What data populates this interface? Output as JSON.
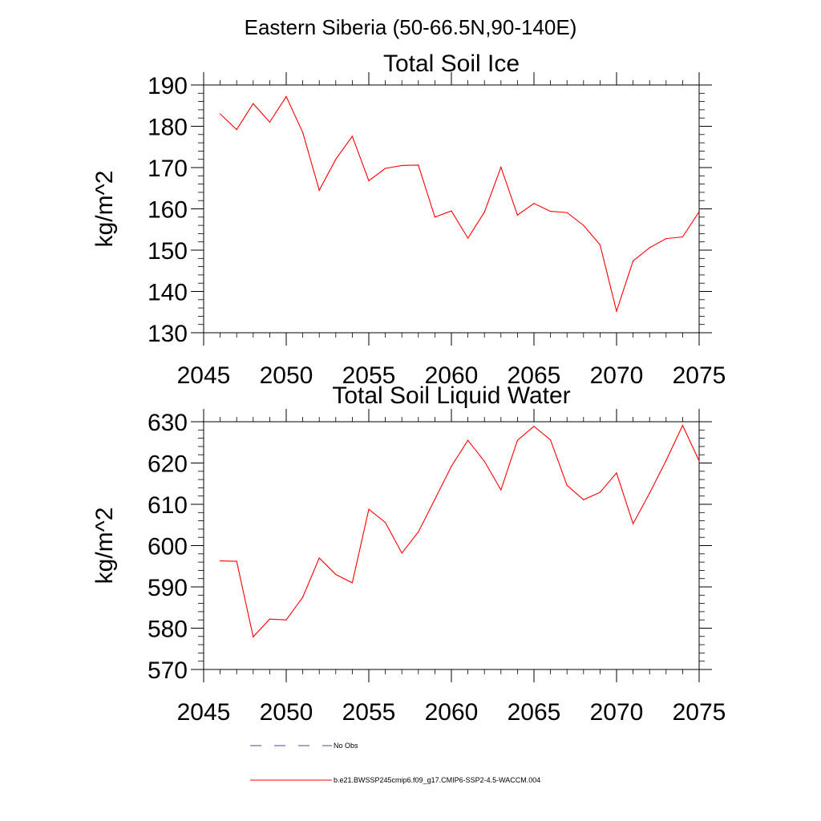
{
  "figure_title": "Eastern Siberia (50-66.5N,90-140E)",
  "chart_data": [
    {
      "type": "line",
      "title": "Total Soil Ice",
      "xlabel": "",
      "ylabel": "kg/m^2",
      "xlim": [
        2045,
        2075
      ],
      "ylim": [
        130,
        190
      ],
      "x_ticks": [
        2045,
        2050,
        2055,
        2060,
        2065,
        2070,
        2075
      ],
      "y_ticks": [
        130,
        140,
        150,
        160,
        170,
        180,
        190
      ],
      "x_tick_labels": [
        "2045",
        "2050",
        "2055",
        "2060",
        "2065",
        "2070",
        "2075"
      ],
      "y_tick_labels": [
        "130",
        "140",
        "150",
        "160",
        "170",
        "180",
        "190"
      ],
      "x": [
        2046,
        2047,
        2048,
        2049,
        2050,
        2051,
        2052,
        2053,
        2054,
        2055,
        2056,
        2057,
        2058,
        2059,
        2060,
        2061,
        2062,
        2063,
        2064,
        2065,
        2066,
        2067,
        2068,
        2069,
        2070,
        2071,
        2072,
        2073,
        2074,
        2075
      ],
      "series": [
        {
          "name": "b.e21.BWSSP245cmip6.f09_g17.CMIP6-SSP2-4.5-WACCM.004",
          "color": "#ff0000",
          "values": [
            183.0,
            179.2,
            185.5,
            181.0,
            187.2,
            178.5,
            164.5,
            172.0,
            177.6,
            166.8,
            169.8,
            170.5,
            170.6,
            158.0,
            159.5,
            152.9,
            159.2,
            170.1,
            158.5,
            161.3,
            159.4,
            159.1,
            156.0,
            151.3,
            135.2,
            147.4,
            150.6,
            152.8,
            153.2,
            159.3
          ]
        }
      ]
    },
    {
      "type": "line",
      "title": "Total Soil Liquid Water",
      "xlabel": "",
      "ylabel": "kg/m^2",
      "xlim": [
        2045,
        2075
      ],
      "ylim": [
        570,
        630
      ],
      "x_ticks": [
        2045,
        2050,
        2055,
        2060,
        2065,
        2070,
        2075
      ],
      "y_ticks": [
        570,
        580,
        590,
        600,
        610,
        620,
        630
      ],
      "x_tick_labels": [
        "2045",
        "2050",
        "2055",
        "2060",
        "2065",
        "2070",
        "2075"
      ],
      "y_tick_labels": [
        "570",
        "580",
        "590",
        "600",
        "610",
        "620",
        "630"
      ],
      "x": [
        2046,
        2047,
        2048,
        2049,
        2050,
        2051,
        2052,
        2053,
        2054,
        2055,
        2056,
        2057,
        2058,
        2059,
        2060,
        2061,
        2062,
        2063,
        2064,
        2065,
        2066,
        2067,
        2068,
        2069,
        2070,
        2071,
        2072,
        2073,
        2074,
        2075
      ],
      "series": [
        {
          "name": "b.e21.BWSSP245cmip6.f09_g17.CMIP6-SSP2-4.5-WACCM.004",
          "color": "#ff0000",
          "values": [
            596.3,
            596.2,
            577.9,
            582.2,
            582.0,
            587.5,
            597.0,
            593.0,
            591.0,
            608.8,
            605.6,
            598.2,
            603.3,
            611.2,
            619.2,
            625.5,
            620.4,
            613.5,
            625.5,
            628.9,
            625.6,
            614.6,
            611.1,
            612.9,
            617.6,
            605.3,
            612.7,
            620.6,
            629.1,
            620.5
          ]
        }
      ]
    }
  ],
  "legend": [
    {
      "label": "No Obs",
      "color": "#4a4a9a",
      "style": "dashed"
    },
    {
      "label": "b.e21.BWSSP245cmip6.f09_g17.CMIP6-SSP2-4.5-WACCM.004",
      "color": "#ff0000",
      "style": "solid"
    }
  ]
}
